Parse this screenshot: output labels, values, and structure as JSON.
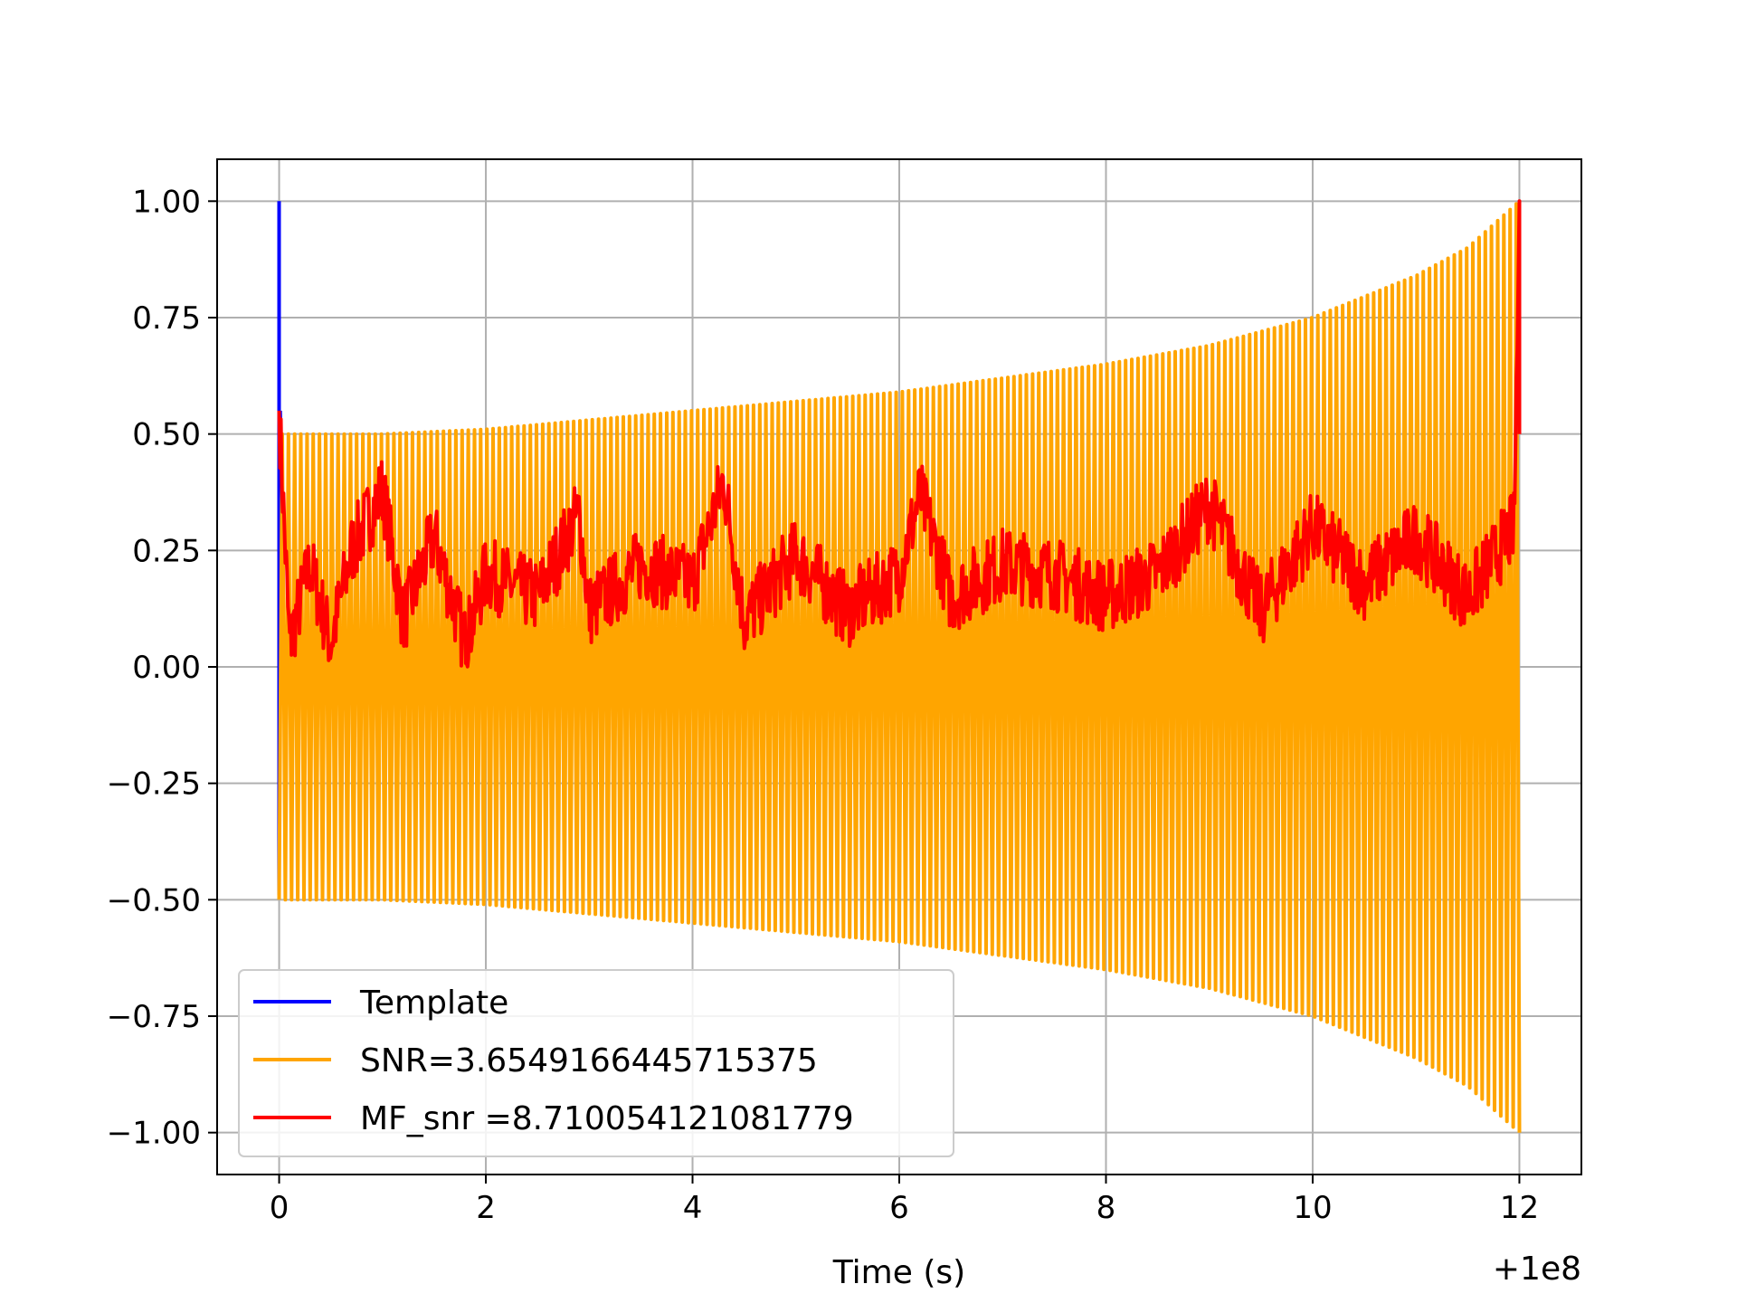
{
  "chart_data": {
    "type": "line",
    "title": "",
    "xlabel": "Time (s)",
    "ylabel": "",
    "x_offset_label": "+1e8",
    "xlim": [
      -0.6,
      12.6
    ],
    "ylim": [
      -1.09,
      1.09
    ],
    "grid": true,
    "legend_position": "lower-left",
    "x_ticks": [
      0,
      2,
      4,
      6,
      8,
      10,
      12
    ],
    "x_tick_labels": [
      "0",
      "2",
      "4",
      "6",
      "8",
      "10",
      "12"
    ],
    "y_ticks": [
      1.0,
      0.75,
      0.5,
      0.25,
      0.0,
      -0.25,
      -0.5,
      -0.75,
      -1.0
    ],
    "y_tick_labels": [
      "1.00",
      "0.75",
      "0.50",
      "0.25",
      "0.00",
      "−0.25",
      "−0.50",
      "−0.75",
      "−1.00"
    ],
    "series": [
      {
        "name": "Template",
        "color": "#0000ff",
        "x": [
          0,
          0,
          0,
          0.01,
          0.02
        ],
        "y": [
          -0.49,
          1.0,
          0.5,
          0.55,
          0.45
        ]
      },
      {
        "name": "SNR=3.6549166445715375",
        "color": "#ffa500",
        "envelope_x": [
          0,
          1,
          2,
          3,
          4,
          5,
          6,
          7,
          8,
          9,
          10,
          11,
          11.5,
          12
        ],
        "envelope_y": [
          0.5,
          0.5,
          0.51,
          0.53,
          0.55,
          0.57,
          0.59,
          0.62,
          0.65,
          0.69,
          0.75,
          0.84,
          0.9,
          1.0
        ],
        "cycles": 200
      },
      {
        "name": "MF_snr =8.710054121081779",
        "color": "#ff0000",
        "x": [
          0,
          0.1,
          0.3,
          0.5,
          0.7,
          1.0,
          1.2,
          1.5,
          1.8,
          2.0,
          2.5,
          2.9,
          3.0,
          3.5,
          4.0,
          4.3,
          4.5,
          5.0,
          5.5,
          6.0,
          6.2,
          6.5,
          7.0,
          7.5,
          8.0,
          8.5,
          9.0,
          9.5,
          10.0,
          10.5,
          11.0,
          11.5,
          11.8,
          11.95,
          12.0
        ],
        "y": [
          0.55,
          0.05,
          0.22,
          0.05,
          0.25,
          0.38,
          0.1,
          0.28,
          0.05,
          0.2,
          0.15,
          0.33,
          0.12,
          0.22,
          0.18,
          0.4,
          0.1,
          0.24,
          0.12,
          0.2,
          0.37,
          0.15,
          0.22,
          0.2,
          0.15,
          0.2,
          0.35,
          0.12,
          0.3,
          0.18,
          0.28,
          0.15,
          0.25,
          0.3,
          1.0
        ]
      }
    ]
  }
}
